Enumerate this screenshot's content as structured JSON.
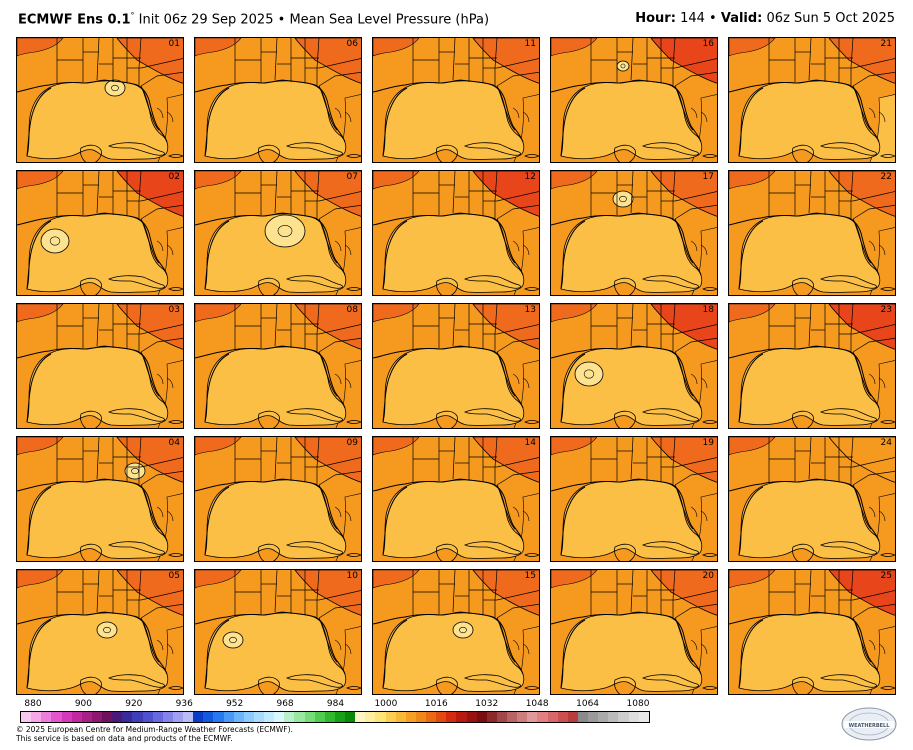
{
  "header": {
    "model": "ECMWF Ens 0.1",
    "degree": "°",
    "init": "Init 06z 29 Sep 2025",
    "bullet": "•",
    "field": "Mean Sea Level Pressure (hPa)",
    "hour_label": "Hour:",
    "hour_value": "144",
    "valid_label": "Valid:",
    "valid_value": "06z Sun 5 Oct 2025"
  },
  "members": [
    "01",
    "06",
    "11",
    "16",
    "21",
    "02",
    "07",
    "12",
    "17",
    "22",
    "03",
    "08",
    "13",
    "18",
    "23",
    "04",
    "09",
    "14",
    "19",
    "24",
    "05",
    "10",
    "15",
    "20",
    "25"
  ],
  "map_colors": {
    "gulf_fill": "#fbbf45",
    "mid_fill": "#f59a1e",
    "high_fill": "#ef6a1c",
    "highest_fill": "#e8451a",
    "low_fill": "#fde390",
    "outline": "#000000"
  },
  "panel_features": {
    "01": {
      "northeast": "high",
      "southeast": "mid",
      "low": "center-north",
      "lowsize": "small"
    },
    "06": {
      "northeast": "high",
      "southeast": "mid",
      "low": "none",
      "lowsize": "none"
    },
    "11": {
      "northeast": "high",
      "southeast": "mid",
      "low": "none",
      "lowsize": "none"
    },
    "16": {
      "northeast": "highest",
      "southeast": "mid",
      "low": "north",
      "lowsize": "tiny"
    },
    "21": {
      "northeast": "high",
      "southeast": "gulf",
      "low": "none",
      "lowsize": "none"
    },
    "02": {
      "northeast": "highest",
      "southeast": "mid",
      "low": "west",
      "lowsize": "medium"
    },
    "07": {
      "northeast": "high",
      "southeast": "mid",
      "low": "center",
      "lowsize": "large"
    },
    "12": {
      "northeast": "highest",
      "southeast": "mid",
      "low": "none",
      "lowsize": "none"
    },
    "17": {
      "northeast": "high",
      "southeast": "mid",
      "low": "north",
      "lowsize": "small"
    },
    "22": {
      "northeast": "high",
      "southeast": "mid",
      "low": "none",
      "lowsize": "none"
    },
    "03": {
      "northeast": "high",
      "southeast": "mid",
      "low": "none",
      "lowsize": "none"
    },
    "08": {
      "northeast": "high",
      "southeast": "mid",
      "low": "none",
      "lowsize": "none"
    },
    "13": {
      "northeast": "high",
      "southeast": "mid",
      "low": "none",
      "lowsize": "none"
    },
    "18": {
      "northeast": "highest",
      "southeast": "mid",
      "low": "west",
      "lowsize": "medium"
    },
    "23": {
      "northeast": "highest",
      "southeast": "mid",
      "low": "none",
      "lowsize": "none"
    },
    "04": {
      "northeast": "high",
      "southeast": "mid",
      "low": "northeast",
      "lowsize": "small"
    },
    "09": {
      "northeast": "high",
      "southeast": "mid",
      "low": "none",
      "lowsize": "none"
    },
    "14": {
      "northeast": "high",
      "southeast": "mid",
      "low": "none",
      "lowsize": "none"
    },
    "19": {
      "northeast": "high",
      "southeast": "mid",
      "low": "none",
      "lowsize": "none"
    },
    "24": {
      "northeast": "mid",
      "southeast": "mid",
      "low": "none",
      "lowsize": "none"
    },
    "05": {
      "northeast": "high",
      "southeast": "mid",
      "low": "center",
      "lowsize": "small"
    },
    "10": {
      "northeast": "high",
      "southeast": "mid",
      "low": "west",
      "lowsize": "small"
    },
    "15": {
      "northeast": "high",
      "southeast": "mid",
      "low": "center",
      "lowsize": "small"
    },
    "20": {
      "northeast": "high",
      "southeast": "mid",
      "low": "none",
      "lowsize": "none"
    },
    "25": {
      "northeast": "highest",
      "southeast": "mid",
      "low": "none",
      "lowsize": "none"
    }
  },
  "colorbar": {
    "ticks": [
      "880",
      "900",
      "920",
      "936",
      "952",
      "968",
      "984",
      "1000",
      "1016",
      "1032",
      "1048",
      "1064",
      "1080"
    ],
    "colors": [
      "#f8c8f0",
      "#f4a8e8",
      "#ee7edc",
      "#e457cc",
      "#d63ab8",
      "#c02a9e",
      "#a81f86",
      "#8c1872",
      "#6e125e",
      "#4a1a7a",
      "#3a2a9a",
      "#3e3eb8",
      "#5050d0",
      "#6868e0",
      "#8484e8",
      "#a0a0f0",
      "#bcbcf4",
      "#0a3cc8",
      "#1458e0",
      "#2a78f0",
      "#4a98f8",
      "#6cb4fc",
      "#8ccaff",
      "#a8dcff",
      "#c0ecff",
      "#d8f8ff",
      "#b8f0c8",
      "#98e8a0",
      "#78dc78",
      "#52cc50",
      "#30b830",
      "#18a018",
      "#0a880a",
      "#fff6c8",
      "#ffeea0",
      "#ffe478",
      "#fbd050",
      "#f8b838",
      "#f5a022",
      "#f08818",
      "#ea6a14",
      "#e24a12",
      "#d42a10",
      "#b81a10",
      "#981210",
      "#7a0e0e",
      "#8a2a2a",
      "#a04848",
      "#b86464",
      "#cc7e7e",
      "#de9a9a",
      "#e08080",
      "#d86868",
      "#cc5050",
      "#bb3c3c",
      "#8a8a8a",
      "#9a9a9a",
      "#aaaaaa",
      "#bbbbbb",
      "#cccccc",
      "#dddddd",
      "#e8e8e8"
    ]
  },
  "credit": {
    "line1": "© 2025 European Centre for Medium-Range Weather Forecasts (ECMWF).",
    "line2": "This service is based on data and products of the ECMWF."
  },
  "logo": {
    "text": "WEATHERBELL"
  }
}
